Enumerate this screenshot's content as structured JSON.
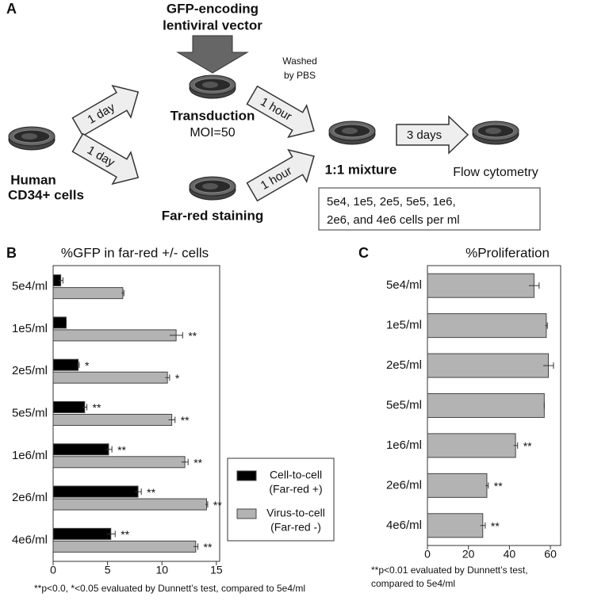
{
  "diagram": {
    "panel_label": "A",
    "vector_label": [
      "GFP-encoding",
      "lentiviral vector"
    ],
    "start_label": [
      "Human",
      "CD34+ cells"
    ],
    "transduction": {
      "label": "Transduction",
      "detail": "MOI=50"
    },
    "staining": "Far-red staining",
    "steps": [
      "1 day",
      "1 day",
      "1 hour",
      "1 hour",
      "3 days"
    ],
    "wash_note": [
      "Washed",
      "by PBS"
    ],
    "mixture": "1:1 mixture",
    "readout": "Flow cytometry",
    "densities": [
      "5e4, 1e5, 2e5, 5e5, 1e6,",
      "2e6, and 4e6 cells per ml"
    ]
  },
  "chart_data": [
    {
      "type": "bar",
      "orientation": "horizontal",
      "panel_label": "B",
      "title": "%GFP in far-red +/- cells",
      "categories": [
        "5e4/ml",
        "1e5/ml",
        "2e5/ml",
        "5e5/ml",
        "1e6/ml",
        "2e6/ml",
        "4e6/ml"
      ],
      "series": [
        {
          "name": [
            "Cell-to-cell",
            "(Far-red +)"
          ],
          "color": "#000000",
          "values": [
            0.7,
            1.2,
            2.3,
            2.9,
            5.1,
            7.8,
            5.3
          ],
          "errors": [
            0.2,
            0,
            0.1,
            0.2,
            0.3,
            0.3,
            0.4
          ],
          "annotations": [
            null,
            null,
            "*",
            "**",
            "**",
            "**",
            "**"
          ]
        },
        {
          "name": [
            "Virus-to-cell",
            "(Far-red -)"
          ],
          "color": "#b3b3b3",
          "values": [
            6.4,
            11.3,
            10.5,
            10.9,
            12.1,
            14.1,
            13.1
          ],
          "errors": [
            0.1,
            0.6,
            0.2,
            0.3,
            0.3,
            0.1,
            0.2
          ],
          "annotations": [
            null,
            "**",
            "*",
            "**",
            "**",
            "**",
            "**"
          ]
        }
      ],
      "xlim": [
        0,
        15.3
      ],
      "xticks": [
        0,
        5,
        10,
        15
      ],
      "footnote": [
        "**p<0.0, *<0.05 evaluated by Dunnett’s test, compared to 5e4/ml"
      ]
    },
    {
      "type": "bar",
      "orientation": "horizontal",
      "panel_label": "C",
      "title": "%Proliferation",
      "categories": [
        "5e4/ml",
        "1e5/ml",
        "2e5/ml",
        "5e5/ml",
        "1e6/ml",
        "2e6/ml",
        "4e6/ml"
      ],
      "series": [
        {
          "color": "#b3b3b3",
          "values": [
            52,
            58,
            59,
            57,
            43,
            29,
            27
          ],
          "errors": [
            2.5,
            0.5,
            2.5,
            0,
            1,
            0.7,
            1.2
          ],
          "annotations": [
            null,
            null,
            null,
            null,
            "**",
            "**",
            "**"
          ]
        }
      ],
      "xlim": [
        0,
        65
      ],
      "xticks": [
        0,
        20,
        40,
        60
      ],
      "footnote": [
        "**p<0.01 evaluated by Dunnett’s test,",
        "compared to 5e4/ml"
      ]
    }
  ]
}
